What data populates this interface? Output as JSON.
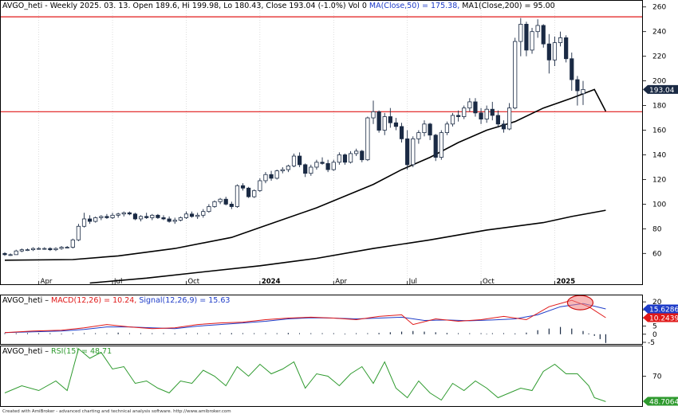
{
  "footer": "Created with AmiBroker - advanced charting and technical analysis software. http://www.amibroker.com",
  "chart_data": [
    {
      "type": "candlestick",
      "panel": "price",
      "title_symbol": "AVGO_heti",
      "title_info": "- Weekly 2025. 03. 13. Open 189.6, Hi 199.98, Lo 180.43, Close 193.04 (-1.0%) Vol 0",
      "ma50_label": "MA(Close,50) = 175.38,",
      "ma200_label": "MA1(Close,200) = 95.00",
      "ylim": [
        35,
        265
      ],
      "y_ticks": [
        60,
        80,
        100,
        120,
        140,
        160,
        180,
        200,
        220,
        240,
        260
      ],
      "x_labels": [
        {
          "label": "Apr",
          "index": 6
        },
        {
          "label": "Jul",
          "index": 19
        },
        {
          "label": "Oct",
          "index": 32
        },
        {
          "label": "2024",
          "index": 45
        },
        {
          "label": "Apr",
          "index": 58
        },
        {
          "label": "Jul",
          "index": 71
        },
        {
          "label": "Oct",
          "index": 84
        },
        {
          "label": "2025",
          "index": 97
        }
      ],
      "last_price": {
        "value": 193.04,
        "label": "193.04"
      },
      "horizontal_lines": [
        252,
        175
      ],
      "candles": [
        [
          60,
          61,
          58,
          59
        ],
        [
          59,
          60,
          58,
          59
        ],
        [
          59,
          63,
          59,
          62
        ],
        [
          62,
          64,
          61,
          63
        ],
        [
          63,
          64,
          62,
          63
        ],
        [
          63,
          65,
          62,
          64
        ],
        [
          64,
          65,
          63,
          64
        ],
        [
          64,
          65,
          63,
          64
        ],
        [
          64,
          65,
          62,
          63
        ],
        [
          63,
          65,
          62,
          64
        ],
        [
          64,
          66,
          63,
          65
        ],
        [
          65,
          66,
          64,
          65
        ],
        [
          65,
          72,
          64,
          71
        ],
        [
          71,
          84,
          70,
          82
        ],
        [
          82,
          93,
          81,
          88
        ],
        [
          88,
          91,
          84,
          86
        ],
        [
          86,
          90,
          85,
          89
        ],
        [
          89,
          91,
          87,
          90
        ],
        [
          90,
          92,
          88,
          89
        ],
        [
          89,
          93,
          88,
          91
        ],
        [
          91,
          93,
          89,
          92
        ],
        [
          92,
          94,
          90,
          93
        ],
        [
          93,
          94,
          91,
          92
        ],
        [
          92,
          93,
          87,
          88
        ],
        [
          88,
          91,
          86,
          90
        ],
        [
          90,
          93,
          88,
          89
        ],
        [
          89,
          92,
          87,
          91
        ],
        [
          91,
          92,
          88,
          89
        ],
        [
          89,
          91,
          87,
          88
        ],
        [
          88,
          90,
          85,
          86
        ],
        [
          86,
          89,
          84,
          87
        ],
        [
          87,
          90,
          86,
          89
        ],
        [
          89,
          94,
          88,
          92
        ],
        [
          92,
          94,
          89,
          90
        ],
        [
          90,
          93,
          88,
          91
        ],
        [
          91,
          96,
          89,
          94
        ],
        [
          94,
          100,
          93,
          98
        ],
        [
          98,
          103,
          97,
          102
        ],
        [
          102,
          105,
          100,
          104
        ],
        [
          104,
          106,
          99,
          100
        ],
        [
          100,
          102,
          96,
          98
        ],
        [
          98,
          116,
          97,
          115
        ],
        [
          115,
          117,
          111,
          113
        ],
        [
          113,
          114,
          105,
          106
        ],
        [
          106,
          112,
          105,
          111
        ],
        [
          111,
          121,
          110,
          119
        ],
        [
          119,
          126,
          117,
          124
        ],
        [
          124,
          127,
          119,
          121
        ],
        [
          121,
          128,
          120,
          127
        ],
        [
          127,
          130,
          125,
          128
        ],
        [
          128,
          132,
          126,
          131
        ],
        [
          131,
          141,
          130,
          139
        ],
        [
          139,
          142,
          130,
          132
        ],
        [
          132,
          133,
          122,
          125
        ],
        [
          125,
          132,
          123,
          130
        ],
        [
          130,
          136,
          128,
          134
        ],
        [
          134,
          138,
          132,
          133
        ],
        [
          133,
          136,
          126,
          128
        ],
        [
          128,
          136,
          127,
          134
        ],
        [
          134,
          142,
          132,
          140
        ],
        [
          140,
          141,
          132,
          134
        ],
        [
          134,
          143,
          133,
          141
        ],
        [
          141,
          145,
          139,
          143
        ],
        [
          143,
          144,
          134,
          136
        ],
        [
          136,
          171,
          135,
          170
        ],
        [
          170,
          184,
          165,
          175
        ],
        [
          175,
          176,
          158,
          160
        ],
        [
          160,
          174,
          156,
          171
        ],
        [
          171,
          178,
          162,
          166
        ],
        [
          166,
          170,
          160,
          163
        ],
        [
          163,
          166,
          150,
          153
        ],
        [
          153,
          160,
          128,
          132
        ],
        [
          132,
          155,
          130,
          153
        ],
        [
          153,
          160,
          149,
          158
        ],
        [
          158,
          168,
          155,
          165
        ],
        [
          165,
          166,
          152,
          156
        ],
        [
          156,
          157,
          135,
          138
        ],
        [
          138,
          160,
          136,
          158
        ],
        [
          158,
          167,
          156,
          165
        ],
        [
          165,
          174,
          163,
          172
        ],
        [
          172,
          176,
          167,
          171
        ],
        [
          171,
          180,
          169,
          178
        ],
        [
          178,
          186,
          175,
          183
        ],
        [
          183,
          186,
          171,
          174
        ],
        [
          174,
          178,
          165,
          169
        ],
        [
          169,
          180,
          166,
          177
        ],
        [
          177,
          183,
          168,
          172
        ],
        [
          172,
          176,
          162,
          165
        ],
        [
          165,
          168,
          158,
          161
        ],
        [
          161,
          182,
          160,
          178
        ],
        [
          178,
          235,
          177,
          232
        ],
        [
          232,
          251,
          220,
          246
        ],
        [
          246,
          248,
          220,
          225
        ],
        [
          225,
          243,
          222,
          240
        ],
        [
          240,
          250,
          235,
          245
        ],
        [
          245,
          246,
          227,
          230
        ],
        [
          230,
          238,
          206,
          217
        ],
        [
          217,
          236,
          212,
          231
        ],
        [
          231,
          240,
          228,
          235
        ],
        [
          235,
          237,
          215,
          218
        ],
        [
          218,
          223,
          192,
          201
        ],
        [
          201,
          204,
          180,
          192
        ],
        [
          189.6,
          199.98,
          180.43,
          193.04
        ]
      ],
      "ma50": [
        [
          0,
          54.5
        ],
        [
          12,
          55
        ],
        [
          20,
          58
        ],
        [
          30,
          64
        ],
        [
          40,
          73
        ],
        [
          45,
          81
        ],
        [
          55,
          97
        ],
        [
          65,
          116
        ],
        [
          70,
          128
        ],
        [
          75,
          138
        ],
        [
          80,
          150
        ],
        [
          85,
          160
        ],
        [
          90,
          167
        ],
        [
          95,
          178
        ],
        [
          100,
          186
        ],
        [
          104,
          193
        ],
        [
          106,
          175.38
        ]
      ],
      "ma200": [
        [
          15,
          36
        ],
        [
          25,
          40
        ],
        [
          35,
          45
        ],
        [
          45,
          50
        ],
        [
          55,
          56
        ],
        [
          65,
          64
        ],
        [
          75,
          71
        ],
        [
          85,
          79
        ],
        [
          95,
          85
        ],
        [
          100,
          90
        ],
        [
          106,
          95.0
        ]
      ]
    },
    {
      "type": "line",
      "panel": "macd",
      "title_symbol": "AVGO_heti",
      "macd_label": "MACD(12,26) = 10.24,",
      "signal_label": "Signal(12,26,9) = 15.63",
      "ylim": [
        -6,
        24
      ],
      "y_ticks": [
        -5,
        0,
        5,
        10,
        15,
        20
      ],
      "macd_points": [
        [
          0,
          1
        ],
        [
          5,
          2
        ],
        [
          10,
          2.5
        ],
        [
          14,
          4
        ],
        [
          18,
          6
        ],
        [
          22,
          4.5
        ],
        [
          26,
          3.5
        ],
        [
          30,
          4
        ],
        [
          34,
          6
        ],
        [
          38,
          7
        ],
        [
          42,
          7.5
        ],
        [
          46,
          9
        ],
        [
          50,
          10
        ],
        [
          54,
          10.5
        ],
        [
          58,
          10
        ],
        [
          62,
          9
        ],
        [
          66,
          11
        ],
        [
          70,
          12
        ],
        [
          72,
          6
        ],
        [
          76,
          9.5
        ],
        [
          80,
          8
        ],
        [
          84,
          9
        ],
        [
          88,
          11
        ],
        [
          92,
          9
        ],
        [
          96,
          17
        ],
        [
          100,
          21
        ],
        [
          103,
          17
        ],
        [
          106,
          10.24
        ]
      ],
      "signal_points": [
        [
          0,
          1
        ],
        [
          5,
          1.5
        ],
        [
          10,
          2
        ],
        [
          14,
          3
        ],
        [
          18,
          4.5
        ],
        [
          22,
          4.5
        ],
        [
          26,
          4
        ],
        [
          30,
          3.5
        ],
        [
          34,
          5
        ],
        [
          38,
          6
        ],
        [
          42,
          7
        ],
        [
          46,
          8
        ],
        [
          50,
          9.5
        ],
        [
          54,
          10.2
        ],
        [
          58,
          10
        ],
        [
          62,
          9.5
        ],
        [
          66,
          10
        ],
        [
          70,
          10.5
        ],
        [
          74,
          8.5
        ],
        [
          78,
          8.8
        ],
        [
          82,
          8.3
        ],
        [
          86,
          8.8
        ],
        [
          90,
          9.5
        ],
        [
          94,
          12
        ],
        [
          98,
          17
        ],
        [
          102,
          19
        ],
        [
          106,
          15.63
        ]
      ],
      "histogram": [
        [
          10,
          0.4
        ],
        [
          20,
          1
        ],
        [
          30,
          0.5
        ],
        [
          40,
          0.7
        ],
        [
          50,
          0.8
        ],
        [
          60,
          0.4
        ],
        [
          66,
          0.8
        ],
        [
          68,
          1.2
        ],
        [
          70,
          1.6
        ],
        [
          72,
          2
        ],
        [
          74,
          1.6
        ],
        [
          76,
          1.2
        ],
        [
          78,
          0.8
        ],
        [
          85,
          0.3
        ],
        [
          90,
          0.5
        ],
        [
          92,
          1
        ],
        [
          94,
          2.5
        ],
        [
          96,
          3.5
        ],
        [
          98,
          4.5
        ],
        [
          100,
          3.5
        ],
        [
          102,
          2
        ],
        [
          103,
          0.5
        ],
        [
          104,
          -1
        ],
        [
          105,
          -3
        ],
        [
          106,
          -5.4
        ]
      ],
      "last_values": [
        {
          "value": 15.63,
          "label": "15.6286",
          "color": "#1e3cc8"
        },
        {
          "value": 10.24,
          "label": "10.2439",
          "color": "#e01818"
        }
      ],
      "ellipse_at": {
        "index": 101.5,
        "value": 19.5
      },
      "colors": {
        "macd": "#e01818",
        "signal": "#1e3cc8",
        "histogram": "#1a2a44"
      }
    },
    {
      "type": "line",
      "panel": "rsi",
      "title_symbol": "AVGO_heti",
      "rsi_label": "RSI(15) = 48.71",
      "ylim": [
        45,
        95
      ],
      "y_ticks": [
        70
      ],
      "rsi_points": [
        [
          0,
          56
        ],
        [
          3,
          62
        ],
        [
          6,
          58
        ],
        [
          9,
          66
        ],
        [
          11,
          58
        ],
        [
          13,
          93
        ],
        [
          15,
          85
        ],
        [
          17,
          90
        ],
        [
          19,
          76
        ],
        [
          21,
          78
        ],
        [
          23,
          64
        ],
        [
          25,
          66
        ],
        [
          27,
          60
        ],
        [
          29,
          56
        ],
        [
          31,
          66
        ],
        [
          33,
          64
        ],
        [
          35,
          75
        ],
        [
          37,
          70
        ],
        [
          39,
          62
        ],
        [
          41,
          78
        ],
        [
          43,
          70
        ],
        [
          45,
          80
        ],
        [
          47,
          72
        ],
        [
          49,
          76
        ],
        [
          51,
          82
        ],
        [
          53,
          60
        ],
        [
          55,
          72
        ],
        [
          57,
          70
        ],
        [
          59,
          62
        ],
        [
          61,
          72
        ],
        [
          63,
          78
        ],
        [
          65,
          64
        ],
        [
          67,
          82
        ],
        [
          69,
          60
        ],
        [
          71,
          52
        ],
        [
          73,
          66
        ],
        [
          75,
          56
        ],
        [
          77,
          50
        ],
        [
          79,
          64
        ],
        [
          81,
          58
        ],
        [
          83,
          66
        ],
        [
          85,
          60
        ],
        [
          87,
          52
        ],
        [
          89,
          56
        ],
        [
          91,
          60
        ],
        [
          93,
          58
        ],
        [
          95,
          74
        ],
        [
          97,
          80
        ],
        [
          99,
          72
        ],
        [
          101,
          72
        ],
        [
          103,
          62
        ],
        [
          104,
          52
        ],
        [
          106,
          48.71
        ]
      ],
      "last_value": {
        "value": 48.71,
        "label": "48.7064"
      },
      "colors": {
        "rsi": "#2e9a2e"
      }
    }
  ]
}
